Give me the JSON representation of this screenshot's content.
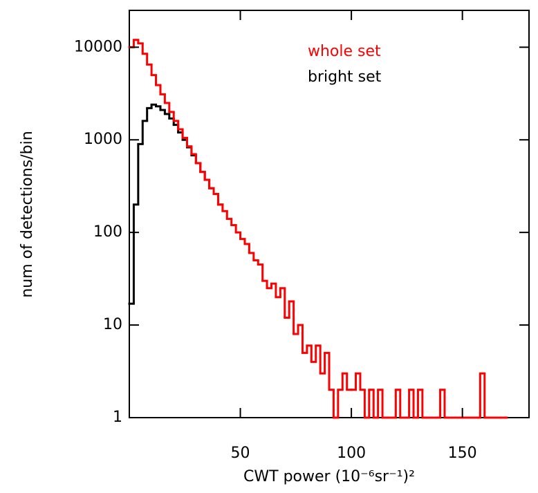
{
  "chart_data": {
    "type": "histogram-step",
    "x_label": "CWT power (10⁻⁶sr⁻¹)²",
    "y_label": "num of detections/bin",
    "log_y": true,
    "legend": "top-right",
    "xlim": [
      0,
      180
    ],
    "xticks": [
      50,
      100,
      150
    ],
    "ylim": [
      1,
      25000
    ],
    "yticks": [
      1,
      10,
      100,
      1000,
      10000
    ],
    "bins": [
      0,
      2,
      4,
      6,
      8,
      10,
      12,
      14,
      16,
      18,
      20,
      22,
      24,
      26,
      28,
      30,
      32,
      34,
      36,
      38,
      40,
      42,
      44,
      46,
      48,
      50,
      52,
      54,
      56,
      58,
      60,
      62,
      64,
      66,
      68,
      70,
      72,
      74,
      76,
      78,
      80,
      82,
      84,
      86,
      88,
      90,
      92,
      94,
      96,
      98,
      100,
      102,
      104,
      106,
      108,
      110,
      112,
      114,
      116,
      118,
      120,
      122,
      124,
      126,
      128,
      130,
      132,
      134,
      136,
      138,
      140,
      142,
      144,
      146,
      148,
      150,
      152,
      154,
      156,
      158,
      160,
      162,
      164,
      166,
      168,
      170
    ],
    "series": [
      {
        "name": "bright set",
        "color": "#000000",
        "values": [
          17,
          200,
          900,
          1600,
          2200,
          2400,
          2300,
          2100,
          1900,
          1700,
          1450,
          1200,
          1000,
          830,
          680,
          560,
          450,
          370,
          300,
          260,
          200,
          null,
          null,
          null,
          null,
          null,
          null,
          null,
          null,
          null,
          null,
          null,
          null,
          null,
          null,
          null,
          null,
          null,
          null,
          null,
          null,
          null,
          null,
          null,
          null,
          null,
          null,
          null,
          null,
          null,
          null,
          null,
          null,
          null,
          null,
          null,
          null,
          null,
          null,
          null,
          null,
          null,
          null,
          null,
          null,
          null,
          null,
          null,
          null,
          null,
          null,
          null,
          null,
          null,
          null,
          null,
          null,
          null,
          null,
          null,
          null,
          null,
          null,
          null,
          null
        ]
      },
      {
        "name": "whole set",
        "color": "#ff0000",
        "values": [
          10000,
          12000,
          11000,
          8500,
          6500,
          5000,
          3900,
          3100,
          2500,
          2000,
          1600,
          1300,
          1050,
          850,
          700,
          560,
          450,
          370,
          300,
          260,
          200,
          170,
          140,
          120,
          100,
          85,
          75,
          60,
          50,
          45,
          30,
          25,
          28,
          20,
          25,
          12,
          18,
          8,
          10,
          5,
          6,
          4,
          6,
          3,
          5,
          2,
          1,
          2,
          3,
          2,
          2,
          3,
          2,
          1,
          2,
          1,
          2,
          1,
          1,
          1,
          2,
          1,
          1,
          2,
          1,
          2,
          1,
          1,
          1,
          1,
          2,
          1,
          1,
          1,
          1,
          1,
          1,
          1,
          1,
          3,
          1,
          1,
          1,
          1,
          1
        ]
      }
    ]
  }
}
